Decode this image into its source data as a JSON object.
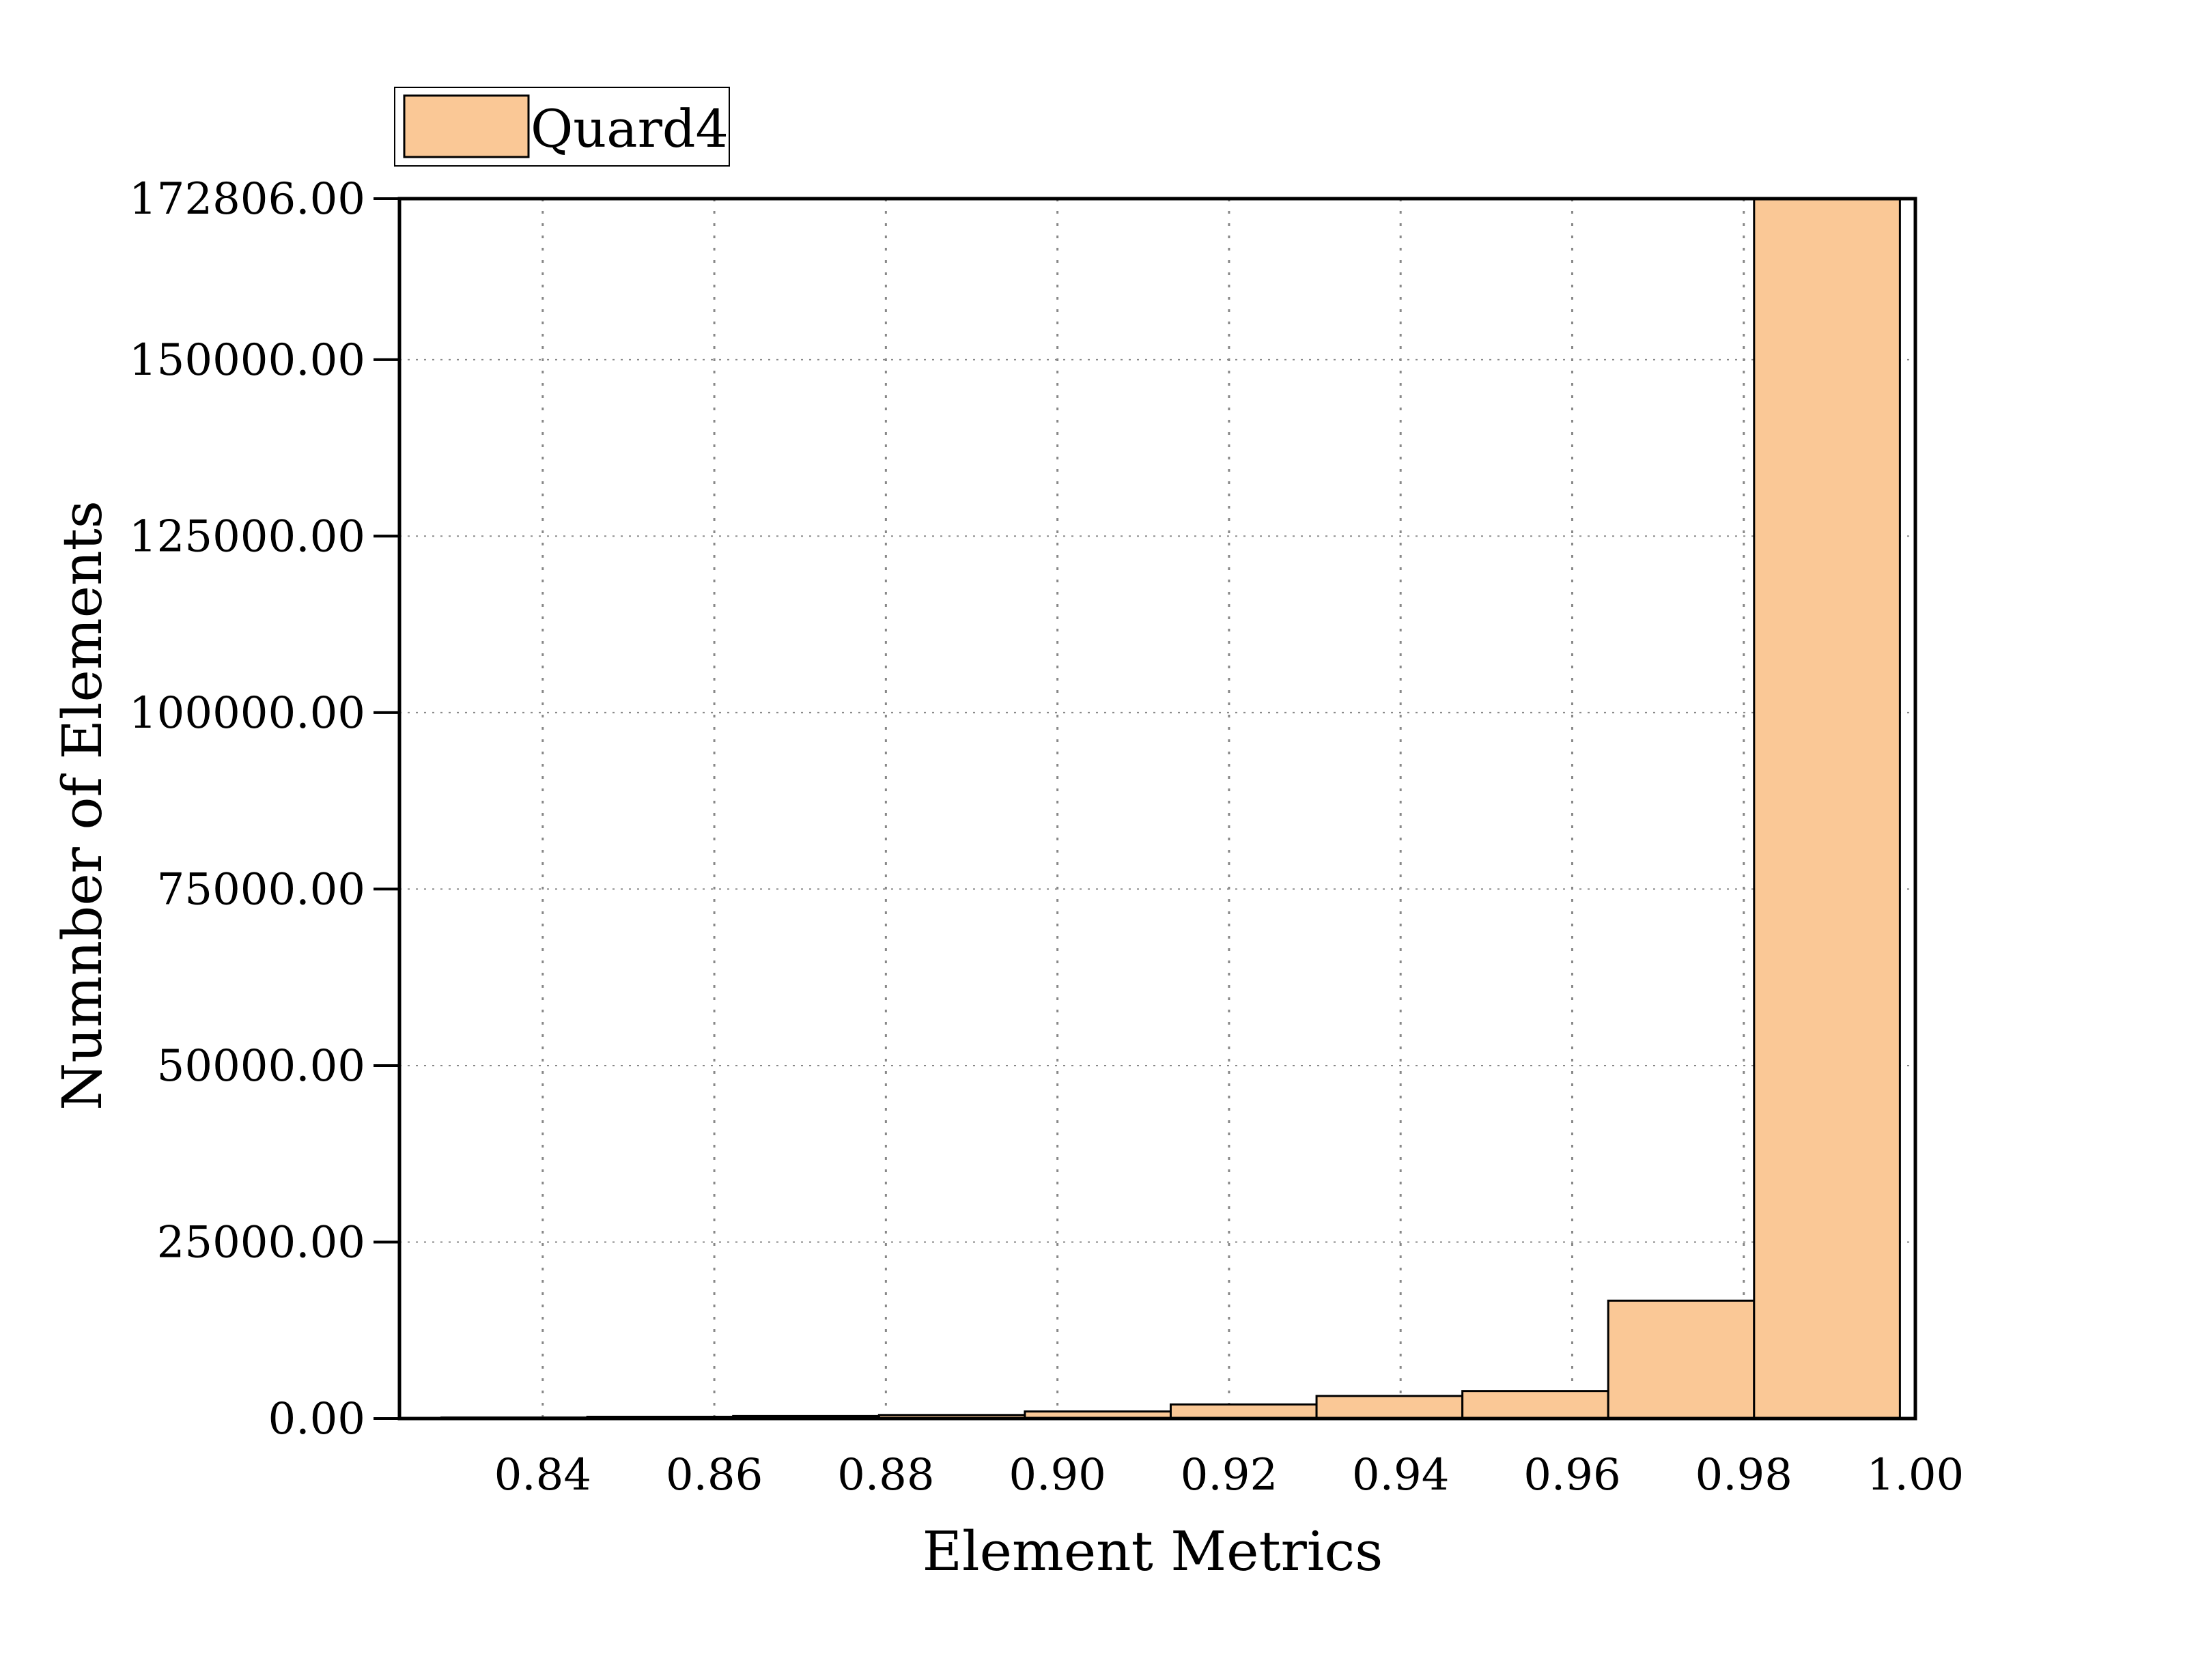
{
  "chart_data": {
    "type": "bar",
    "title": "",
    "xlabel": "Element Metrics",
    "ylabel": "Numnber of Elements",
    "xlim": [
      0.8233,
      1.0
    ],
    "ylim": [
      0,
      172806
    ],
    "x_tick_values": [
      0.84,
      0.86,
      0.88,
      0.9,
      0.92,
      0.94,
      0.96,
      0.98,
      1.0
    ],
    "x_tick_labels": [
      "0.84",
      "0.86",
      "0.88",
      "0.90",
      "0.92",
      "0.94",
      "0.96",
      "0.98",
      "1.00"
    ],
    "y_tick_values": [
      0,
      25000,
      50000,
      75000,
      100000,
      125000,
      150000,
      172806
    ],
    "y_tick_labels": [
      "0.00",
      "25000.00",
      "50000.00",
      "75000.00",
      "100000.00",
      "125000.00",
      "150000.00",
      "172806.00"
    ],
    "grid": true,
    "legend_position": "top-left, outside plot",
    "colors": {
      "bar_fill": "#FAC896",
      "bar_stroke": "#000000",
      "grid": "#888888"
    },
    "series": [
      {
        "name": "Quard4",
        "bin_width": 0.017,
        "x": [
          0.8367,
          0.8537,
          0.8707,
          0.8877,
          0.9047,
          0.9217,
          0.9387,
          0.9557,
          0.9727,
          0.9897
        ],
        "values": [
          150,
          250,
          350,
          500,
          1000,
          2000,
          3200,
          3900,
          16700,
          172806
        ]
      }
    ]
  }
}
